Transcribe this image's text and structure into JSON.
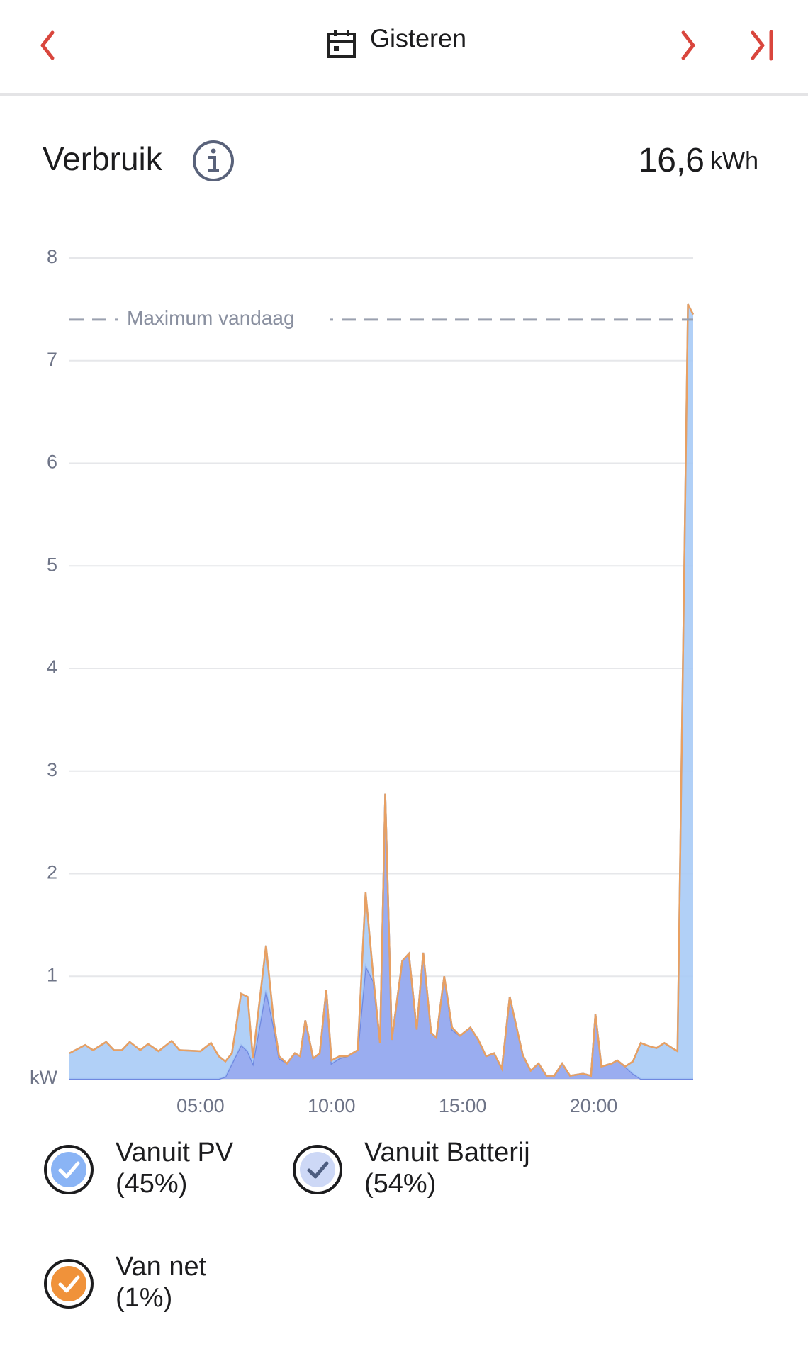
{
  "header": {
    "title": "Gisteren"
  },
  "summary": {
    "title": "Verbruik",
    "total": "16,6",
    "unit": "kWh"
  },
  "chart_data": {
    "type": "stacked-area",
    "x": [
      0,
      0.6,
      0.9,
      1.4,
      1.7,
      2.0,
      2.3,
      2.7,
      3.0,
      3.4,
      3.9,
      4.2,
      5.0,
      5.4,
      5.7,
      5.95,
      6.2,
      6.55,
      6.8,
      7.0,
      7.5,
      7.8,
      8.0,
      8.3,
      8.6,
      8.8,
      9.0,
      9.3,
      9.55,
      9.8,
      10.0,
      10.3,
      10.6,
      11.0,
      11.3,
      11.6,
      11.85,
      12.05,
      12.3,
      12.7,
      12.95,
      13.25,
      13.5,
      13.8,
      14.0,
      14.3,
      14.6,
      14.9,
      15.3,
      15.6,
      15.9,
      16.2,
      16.5,
      16.8,
      17.3,
      17.6,
      17.9,
      18.2,
      18.5,
      18.8,
      19.1,
      19.6,
      19.9,
      20.07,
      20.3,
      20.7,
      20.9,
      21.2,
      21.5,
      21.8,
      22.1,
      22.4,
      22.7,
      23.0,
      23.2,
      23.6,
      23.8
    ],
    "series": [
      {
        "name": "Vanuit PV",
        "share_label": "(45%)",
        "color": "#8fa4ee",
        "line": "#6f88e0",
        "icon": "#8ab4f5",
        "check": "#ffffff",
        "values": [
          0,
          0,
          0,
          0,
          0,
          0,
          0,
          0,
          0,
          0,
          0,
          0,
          0,
          0,
          0,
          0.02,
          0.15,
          0.33,
          0.27,
          0.15,
          0.87,
          0.5,
          0.2,
          0.15,
          0.25,
          0.22,
          0.57,
          0.2,
          0.25,
          0.87,
          0.15,
          0.2,
          0.22,
          0.28,
          1.1,
          0.95,
          0.35,
          2.78,
          0.38,
          1.15,
          1.22,
          0.48,
          1.23,
          0.45,
          0.4,
          1.0,
          0.48,
          0.42,
          0.5,
          0.38,
          0.22,
          0.25,
          0.1,
          0.8,
          0.23,
          0.08,
          0.15,
          0.03,
          0.03,
          0.15,
          0.03,
          0.05,
          0.03,
          0.63,
          0.12,
          0.15,
          0.18,
          0.12,
          0.05,
          0,
          0,
          0,
          0,
          0,
          0,
          0,
          0
        ]
      },
      {
        "name": "Vanuit Batterij",
        "share_label": "(54%)",
        "color": "#a8cbf6",
        "line": "#8db6ec",
        "icon": "#cdd8f6",
        "check": "#4d5d80",
        "values": [
          0.25,
          0.33,
          0.28,
          0.36,
          0.28,
          0.28,
          0.36,
          0.28,
          0.34,
          0.27,
          0.37,
          0.28,
          0.27,
          0.35,
          0.22,
          0.15,
          0.1,
          0.5,
          0.53,
          0.05,
          0.43,
          0.05,
          0.02,
          0,
          0,
          0,
          0,
          0,
          0,
          0,
          0.03,
          0.02,
          0,
          0,
          0.72,
          0.03,
          0,
          0,
          0,
          0,
          0,
          0,
          0,
          0,
          0,
          0,
          0.02,
          0,
          0,
          0,
          0,
          0,
          0,
          0,
          0,
          0,
          0,
          0,
          0,
          0,
          0,
          0,
          0,
          0,
          0,
          0,
          0,
          0,
          0.12,
          0.35,
          0.32,
          0.3,
          0.35,
          0.3,
          0.27,
          7.55,
          7.45
        ]
      },
      {
        "name": "Van net",
        "share_label": "(1%)",
        "color": "#f0923a",
        "line": "#e8a062",
        "icon": "#f0923a",
        "check": "#ffffff",
        "values": [
          0,
          0,
          0,
          0,
          0,
          0,
          0,
          0,
          0,
          0,
          0,
          0,
          0,
          0,
          0,
          0,
          0,
          0,
          0,
          0,
          0,
          0,
          0,
          0,
          0,
          0,
          0,
          0,
          0,
          0,
          0,
          0,
          0,
          0,
          0,
          0,
          0,
          0,
          0,
          0,
          0,
          0,
          0,
          0,
          0,
          0,
          0,
          0,
          0,
          0,
          0,
          0,
          0,
          0,
          0,
          0,
          0,
          0,
          0,
          0,
          0,
          0,
          0,
          0,
          0,
          0,
          0,
          0,
          0,
          0,
          0,
          0,
          0,
          0,
          0,
          0,
          0
        ]
      }
    ],
    "xlim": [
      0,
      23.8
    ],
    "xticks": [
      {
        "value": 5,
        "label": "05:00"
      },
      {
        "value": 10,
        "label": "10:00"
      },
      {
        "value": 15,
        "label": "15:00"
      },
      {
        "value": 20,
        "label": "20:00"
      }
    ],
    "ylim": [
      0,
      8
    ],
    "yticks": [
      {
        "value": 0,
        "label": "kW"
      },
      1,
      2,
      3,
      4,
      5,
      6,
      7,
      8
    ],
    "grid": true,
    "reference_line": {
      "value": 7.4,
      "label": "Maximum vandaag"
    }
  }
}
